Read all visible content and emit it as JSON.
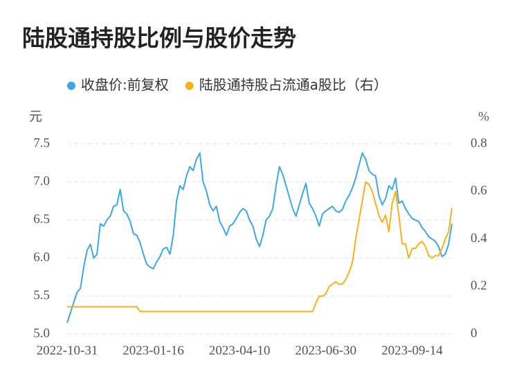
{
  "chart_data": {
    "type": "line",
    "title": "陆股通持股比例与股价走势",
    "y_label": "元",
    "y2_label": "%",
    "categories": [
      "2022-10-31",
      null,
      null,
      null,
      null,
      null,
      null,
      null,
      null,
      null,
      null,
      null,
      null,
      null,
      null,
      null,
      null,
      null,
      null,
      null,
      null,
      null,
      null,
      null,
      null,
      null,
      "2023-01-16",
      null,
      null,
      null,
      null,
      null,
      null,
      null,
      null,
      null,
      null,
      null,
      null,
      null,
      null,
      null,
      null,
      null,
      null,
      null,
      null,
      null,
      null,
      null,
      null,
      null,
      "2023-04-10",
      null,
      null,
      null,
      null,
      null,
      null,
      null,
      null,
      null,
      null,
      null,
      null,
      null,
      null,
      null,
      null,
      null,
      null,
      null,
      null,
      null,
      null,
      null,
      null,
      null,
      "2023-06-30",
      null,
      null,
      null,
      null,
      null,
      null,
      null,
      null,
      null,
      null,
      null,
      null,
      null,
      null,
      null,
      null,
      null,
      null,
      null,
      null,
      null,
      null,
      null,
      null,
      null,
      "2023-09-14",
      null,
      null,
      null,
      null,
      null,
      null,
      null,
      null,
      null,
      null,
      null,
      null
    ],
    "series": [
      {
        "name": "收盘价:前复权",
        "color": "#3ba7e5",
        "axis": "y",
        "values": [
          5.15,
          5.28,
          5.42,
          5.55,
          5.6,
          5.88,
          6.1,
          6.18,
          6.0,
          6.05,
          6.45,
          6.42,
          6.5,
          6.55,
          6.68,
          6.7,
          6.9,
          6.62,
          6.58,
          6.48,
          6.32,
          6.3,
          6.2,
          6.05,
          5.92,
          5.88,
          5.86,
          5.95,
          6.02,
          6.12,
          6.14,
          6.05,
          6.3,
          6.75,
          6.95,
          6.9,
          7.08,
          7.2,
          7.15,
          7.3,
          7.38,
          7.0,
          6.88,
          6.7,
          6.62,
          6.68,
          6.48,
          6.4,
          6.3,
          6.42,
          6.45,
          6.52,
          6.6,
          6.65,
          6.62,
          6.5,
          6.42,
          6.25,
          6.15,
          6.3,
          6.5,
          6.55,
          6.65,
          6.95,
          7.2,
          7.1,
          6.95,
          6.8,
          6.65,
          6.55,
          6.7,
          6.85,
          6.98,
          6.72,
          6.65,
          6.55,
          6.42,
          6.58,
          6.62,
          6.65,
          6.68,
          6.62,
          6.6,
          6.64,
          6.75,
          6.82,
          6.92,
          7.05,
          7.22,
          7.38,
          7.3,
          7.15,
          7.1,
          7.08,
          6.82,
          6.7,
          6.78,
          6.95,
          6.9,
          7.05,
          6.72,
          6.75,
          6.65,
          6.58,
          6.52,
          6.5,
          6.48,
          6.4,
          6.35,
          6.28,
          6.25,
          6.22,
          6.15,
          6.02,
          6.05,
          6.18,
          6.45
        ]
      },
      {
        "name": "陆股通持股占流通a股比（右）",
        "color": "#f5b21b",
        "axis": "y2",
        "values": [
          0.115,
          0.115,
          0.115,
          0.115,
          0.115,
          0.115,
          0.115,
          0.115,
          0.115,
          0.115,
          0.115,
          0.115,
          0.115,
          0.115,
          0.115,
          0.115,
          0.115,
          0.115,
          0.115,
          0.115,
          0.115,
          0.115,
          0.095,
          0.095,
          0.095,
          0.095,
          0.095,
          0.095,
          0.095,
          0.095,
          0.095,
          0.095,
          0.095,
          0.095,
          0.095,
          0.095,
          0.095,
          0.095,
          0.095,
          0.095,
          0.095,
          0.095,
          0.095,
          0.095,
          0.095,
          0.095,
          0.095,
          0.095,
          0.095,
          0.095,
          0.095,
          0.095,
          0.095,
          0.095,
          0.095,
          0.095,
          0.095,
          0.095,
          0.095,
          0.095,
          0.095,
          0.095,
          0.095,
          0.095,
          0.095,
          0.095,
          0.095,
          0.095,
          0.095,
          0.095,
          0.095,
          0.095,
          0.095,
          0.095,
          0.095,
          0.13,
          0.16,
          0.16,
          0.17,
          0.2,
          0.21,
          0.22,
          0.21,
          0.21,
          0.23,
          0.26,
          0.3,
          0.4,
          0.48,
          0.56,
          0.64,
          0.63,
          0.6,
          0.55,
          0.5,
          0.47,
          0.5,
          0.43,
          0.55,
          0.6,
          0.5,
          0.38,
          0.38,
          0.32,
          0.36,
          0.36,
          0.38,
          0.39,
          0.37,
          0.33,
          0.32,
          0.33,
          0.33,
          0.36,
          0.4,
          0.43,
          0.53
        ]
      }
    ],
    "ylim": [
      5,
      7.5
    ],
    "yticks": [
      {
        "value": 5,
        "label": "5.0"
      },
      5.5,
      {
        "value": 6,
        "label": "6.0"
      },
      6.5,
      {
        "value": 7,
        "label": "7.0"
      },
      7.5
    ],
    "y2lim": [
      0,
      0.8
    ],
    "y2ticks": [
      0,
      0.2,
      0.4,
      0.6,
      0.8
    ],
    "grid": true
  }
}
